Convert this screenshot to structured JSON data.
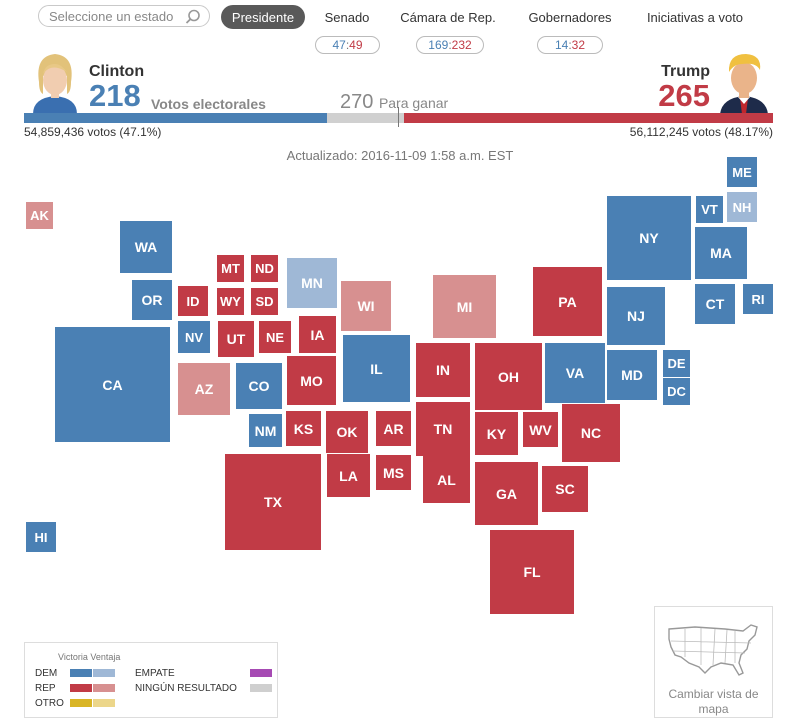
{
  "search": {
    "placeholder": "Seleccione un estado"
  },
  "nav": {
    "tabs": [
      "Presidente",
      "Senado",
      "Cámara de Rep.",
      "Gobernadores",
      "Iniciativas a voto"
    ],
    "active": "Presidente"
  },
  "tallies": {
    "senado": {
      "dem": "47",
      "rep": "49"
    },
    "camara": {
      "dem": "169",
      "rep": "232"
    },
    "gobernadores": {
      "dem": "14",
      "rep": "32"
    },
    "separator": ":"
  },
  "header": {
    "dem_name": "Clinton",
    "rep_name": "Trump",
    "dem_ev": "218",
    "rep_ev": "265",
    "ev_label": "Votos electorales",
    "to_win_number": "270",
    "to_win_label": "Para ganar",
    "dem_votes": "54,859,436 votos (47.1%)",
    "rep_votes": "56,112,245 votos (48.17%)",
    "dem_ev_value": 218,
    "rep_ev_value": 265,
    "total_ev": 538
  },
  "updated": "Actualizado: 2016-11-09 1:58 a.m. EST",
  "colors": {
    "dem_win": "#4a80b4",
    "dem_lead": "#9fb8d6",
    "rep_win": "#c13b46",
    "rep_lead": "#d79090",
    "tie": "#a64ab3",
    "none": "#cfcfcf",
    "other_win": "#d9b526",
    "other_lead": "#ecd68a"
  },
  "states": [
    {
      "abbr": "AK",
      "status": "rep_lead"
    },
    {
      "abbr": "HI",
      "status": "dem_win"
    },
    {
      "abbr": "WA",
      "status": "dem_win"
    },
    {
      "abbr": "OR",
      "status": "dem_win"
    },
    {
      "abbr": "CA",
      "status": "dem_win"
    },
    {
      "abbr": "MT",
      "status": "rep_win"
    },
    {
      "abbr": "ND",
      "status": "rep_win"
    },
    {
      "abbr": "ID",
      "status": "rep_win"
    },
    {
      "abbr": "WY",
      "status": "rep_win"
    },
    {
      "abbr": "SD",
      "status": "rep_win"
    },
    {
      "abbr": "NV",
      "status": "dem_win"
    },
    {
      "abbr": "UT",
      "status": "rep_win"
    },
    {
      "abbr": "NE",
      "status": "rep_win"
    },
    {
      "abbr": "AZ",
      "status": "rep_lead"
    },
    {
      "abbr": "CO",
      "status": "dem_win"
    },
    {
      "abbr": "NM",
      "status": "dem_win"
    },
    {
      "abbr": "KS",
      "status": "rep_win"
    },
    {
      "abbr": "OK",
      "status": "rep_win"
    },
    {
      "abbr": "TX",
      "status": "rep_win"
    },
    {
      "abbr": "MN",
      "status": "dem_lead"
    },
    {
      "abbr": "IA",
      "status": "rep_win"
    },
    {
      "abbr": "MO",
      "status": "rep_win"
    },
    {
      "abbr": "AR",
      "status": "rep_win"
    },
    {
      "abbr": "LA",
      "status": "rep_win"
    },
    {
      "abbr": "MS",
      "status": "rep_win"
    },
    {
      "abbr": "WI",
      "status": "rep_lead"
    },
    {
      "abbr": "IL",
      "status": "dem_win"
    },
    {
      "abbr": "MI",
      "status": "rep_lead"
    },
    {
      "abbr": "IN",
      "status": "rep_win"
    },
    {
      "abbr": "TN",
      "status": "rep_win"
    },
    {
      "abbr": "AL",
      "status": "rep_win"
    },
    {
      "abbr": "OH",
      "status": "rep_win"
    },
    {
      "abbr": "KY",
      "status": "rep_win"
    },
    {
      "abbr": "GA",
      "status": "rep_win"
    },
    {
      "abbr": "FL",
      "status": "rep_win"
    },
    {
      "abbr": "PA",
      "status": "rep_win"
    },
    {
      "abbr": "WV",
      "status": "rep_win"
    },
    {
      "abbr": "VA",
      "status": "dem_win"
    },
    {
      "abbr": "NC",
      "status": "rep_win"
    },
    {
      "abbr": "SC",
      "status": "rep_win"
    },
    {
      "abbr": "NY",
      "status": "dem_win"
    },
    {
      "abbr": "NJ",
      "status": "dem_win"
    },
    {
      "abbr": "MD",
      "status": "dem_win"
    },
    {
      "abbr": "DE",
      "status": "dem_win"
    },
    {
      "abbr": "DC",
      "status": "dem_win"
    },
    {
      "abbr": "VT",
      "status": "dem_win"
    },
    {
      "abbr": "NH",
      "status": "dem_lead"
    },
    {
      "abbr": "ME",
      "status": "dem_win"
    },
    {
      "abbr": "MA",
      "status": "dem_win"
    },
    {
      "abbr": "CT",
      "status": "dem_win"
    },
    {
      "abbr": "RI",
      "status": "dem_win"
    }
  ],
  "legend": {
    "header": "Victoria Ventaja",
    "dem": "DEM",
    "rep": "REP",
    "other": "OTRO",
    "tie": "EMPATE",
    "none": "NINGÚN RESULTADO"
  },
  "map_toggle": {
    "label": "Cambiar vista de mapa"
  }
}
